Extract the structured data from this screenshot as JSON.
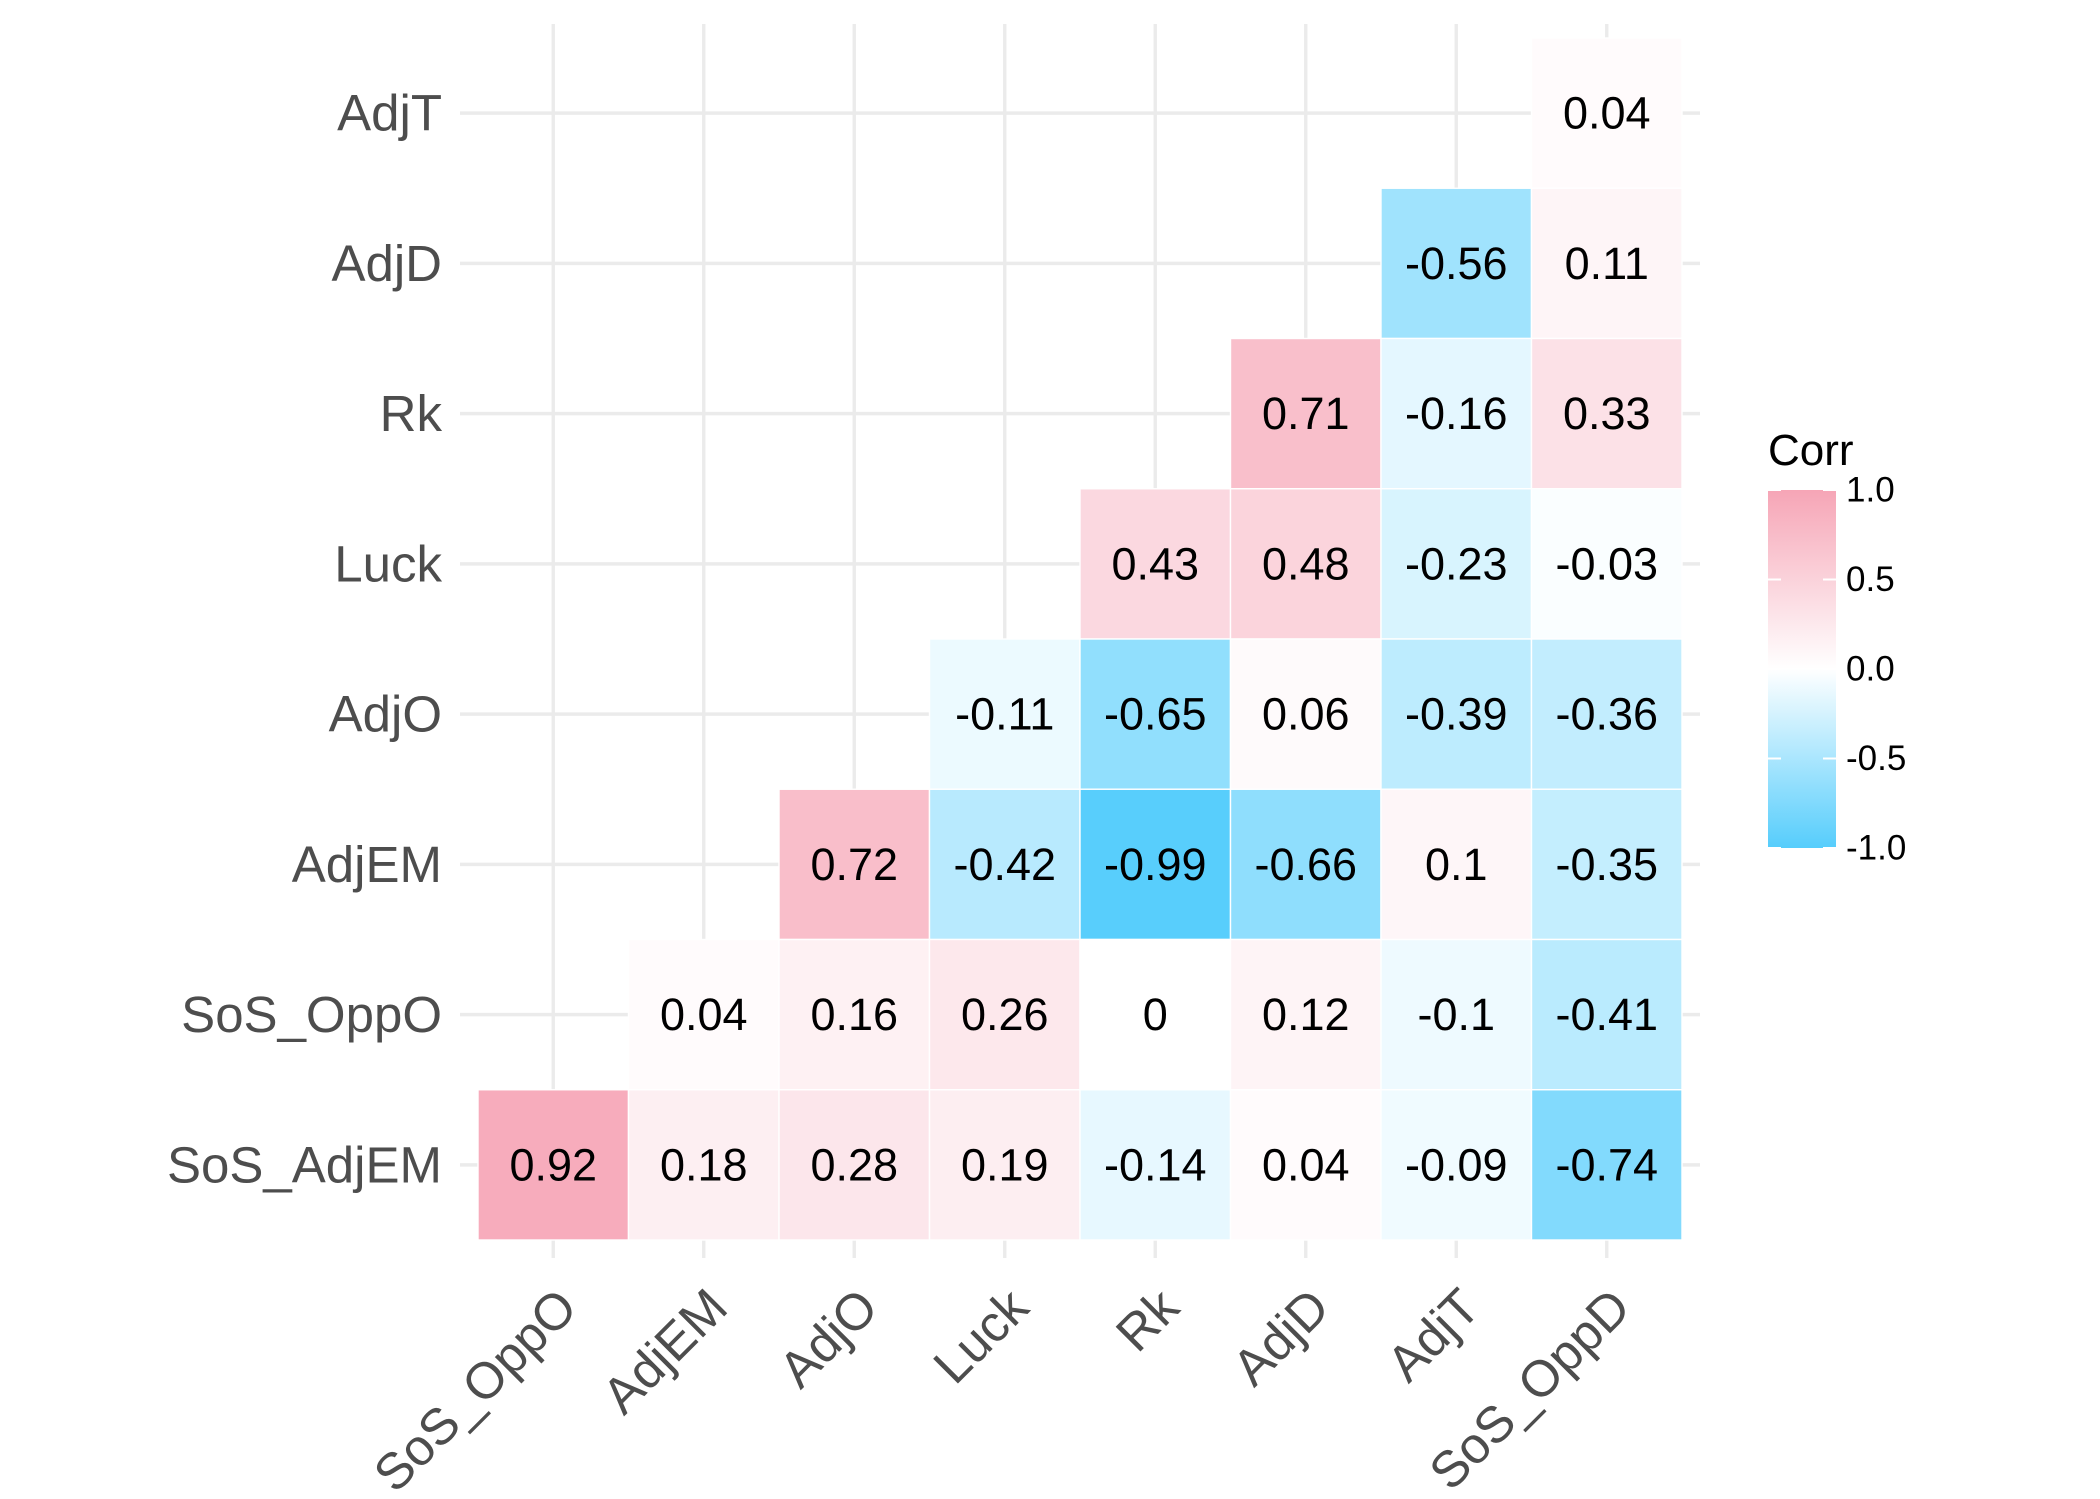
{
  "chart_data": {
    "type": "heatmap",
    "title": "",
    "xlabel": "",
    "ylabel": "",
    "x_categories": [
      "SoS_OppO",
      "AdjEM",
      "AdjO",
      "Luck",
      "Rk",
      "AdjD",
      "AdjT",
      "SoS_OppD"
    ],
    "y_categories": [
      "AdjT",
      "AdjD",
      "Rk",
      "Luck",
      "AdjO",
      "AdjEM",
      "SoS_OppO",
      "SoS_AdjEM"
    ],
    "values": [
      [
        null,
        null,
        null,
        null,
        null,
        null,
        null,
        0.04
      ],
      [
        null,
        null,
        null,
        null,
        null,
        null,
        -0.56,
        0.11
      ],
      [
        null,
        null,
        null,
        null,
        null,
        0.71,
        -0.16,
        0.33
      ],
      [
        null,
        null,
        null,
        null,
        0.43,
        0.48,
        -0.23,
        -0.03
      ],
      [
        null,
        null,
        null,
        -0.11,
        -0.65,
        0.06,
        -0.39,
        -0.36
      ],
      [
        null,
        null,
        0.72,
        -0.42,
        -0.99,
        -0.66,
        0.1,
        -0.35
      ],
      [
        null,
        0.04,
        0.16,
        0.26,
        0,
        0.12,
        -0.1,
        -0.41
      ],
      [
        0.92,
        0.18,
        0.28,
        0.19,
        -0.14,
        0.04,
        -0.09,
        -0.74
      ]
    ],
    "labels": [
      [
        null,
        null,
        null,
        null,
        null,
        null,
        null,
        "0.04"
      ],
      [
        null,
        null,
        null,
        null,
        null,
        null,
        "-0.56",
        "0.11"
      ],
      [
        null,
        null,
        null,
        null,
        null,
        "0.71",
        "-0.16",
        "0.33"
      ],
      [
        null,
        null,
        null,
        null,
        "0.43",
        "0.48",
        "-0.23",
        "-0.03"
      ],
      [
        null,
        null,
        null,
        "-0.11",
        "-0.65",
        "0.06",
        "-0.39",
        "-0.36"
      ],
      [
        null,
        null,
        "0.72",
        "-0.42",
        "-0.99",
        "-0.66",
        "0.1",
        "-0.35"
      ],
      [
        null,
        "0.04",
        "0.16",
        "0.26",
        "0",
        "0.12",
        "-0.1",
        "-0.41"
      ],
      [
        "0.92",
        "0.18",
        "0.28",
        "0.19",
        "-0.14",
        "0.04",
        "-0.09",
        "-0.74"
      ]
    ],
    "color_scale": {
      "low": "#56cdfc",
      "mid": "#ffffff",
      "high": "#f6a5b6",
      "limits": [
        -1,
        1
      ]
    },
    "legend": {
      "title": "Corr",
      "position": "right",
      "breaks": [
        1.0,
        0.5,
        0.0,
        -0.5,
        -1.0
      ],
      "break_labels": [
        "1.0",
        "0.5",
        "0.0",
        "-0.5",
        "-1.0"
      ]
    },
    "grid": true,
    "x_tick_rotation": "45"
  }
}
